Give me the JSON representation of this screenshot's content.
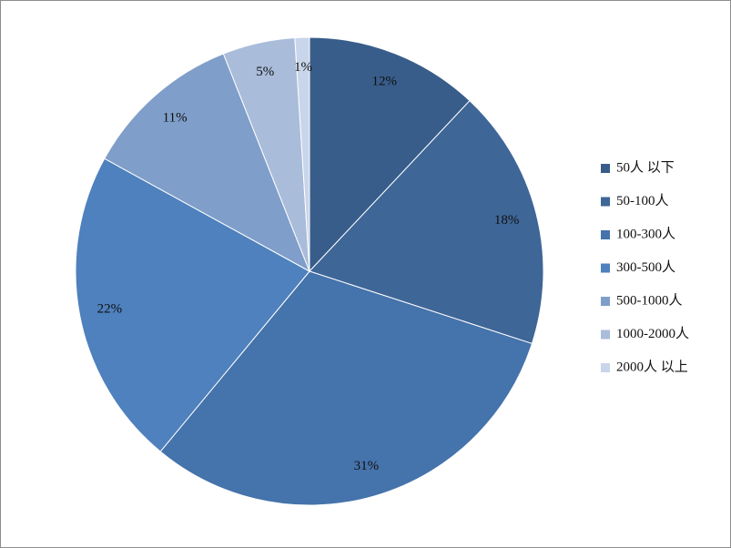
{
  "chart_data": {
    "type": "pie",
    "categories": [
      "50人 以下",
      "50-100人",
      "100-300人",
      "300-500人",
      "500-1000人",
      "1000-2000人",
      "2000人 以上"
    ],
    "values": [
      12,
      18,
      31,
      22,
      11,
      5,
      1
    ],
    "value_labels": [
      "12%",
      "18%",
      "31%",
      "22%",
      "11%",
      "5%",
      "1%"
    ],
    "colors": [
      "#385d8a",
      "#3e6697",
      "#4573ab",
      "#4e81bd",
      "#7f9ec9",
      "#a9bcda",
      "#c9d5ea"
    ],
    "legend": "right"
  }
}
